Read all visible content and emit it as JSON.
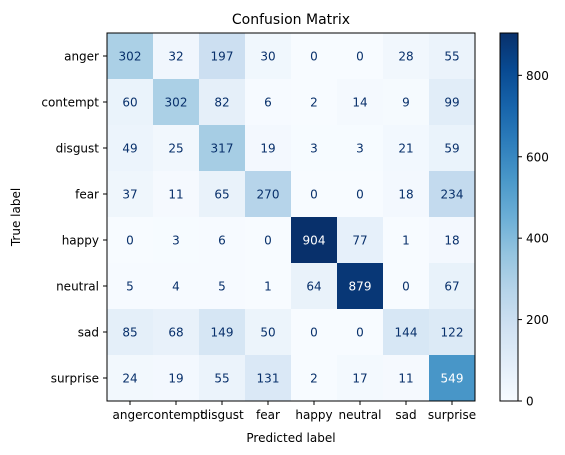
{
  "chart_data": {
    "type": "heatmap",
    "title": "Confusion Matrix",
    "xlabel": "Predicted label",
    "ylabel": "True label",
    "x_categories": [
      "anger",
      "contempt",
      "disgust",
      "fear",
      "happy",
      "neutral",
      "sad",
      "surprise"
    ],
    "y_categories": [
      "anger",
      "contempt",
      "disgust",
      "fear",
      "happy",
      "neutral",
      "sad",
      "surprise"
    ],
    "values": [
      [
        302,
        32,
        197,
        30,
        0,
        0,
        28,
        55
      ],
      [
        60,
        302,
        82,
        6,
        2,
        14,
        9,
        99
      ],
      [
        49,
        25,
        317,
        19,
        3,
        3,
        21,
        59
      ],
      [
        37,
        11,
        65,
        270,
        0,
        0,
        18,
        234
      ],
      [
        0,
        3,
        6,
        0,
        904,
        77,
        1,
        18
      ],
      [
        5,
        4,
        5,
        1,
        64,
        879,
        0,
        67
      ],
      [
        85,
        68,
        149,
        50,
        0,
        0,
        144,
        122
      ],
      [
        24,
        19,
        55,
        131,
        2,
        17,
        11,
        549
      ]
    ],
    "colormap": "Blues",
    "vmin": 0,
    "vmax": 904,
    "colorbar_ticks": [
      0,
      200,
      400,
      600,
      800
    ],
    "colorbar": "right",
    "grid": false
  }
}
